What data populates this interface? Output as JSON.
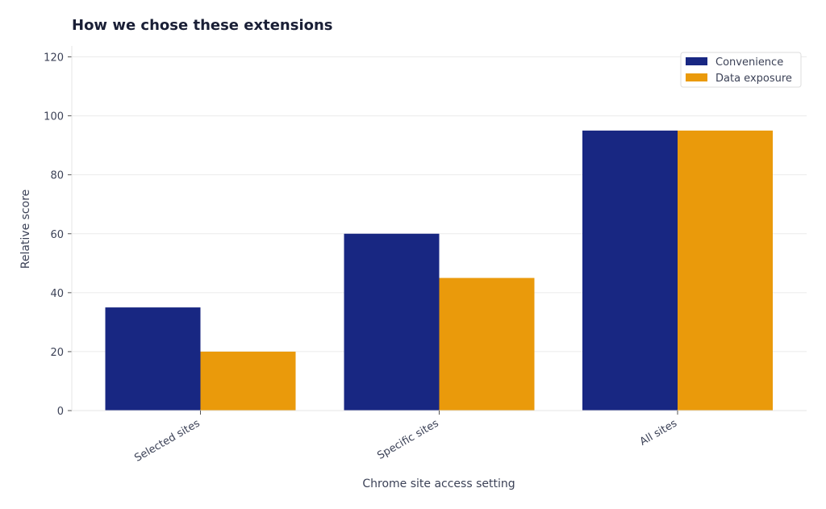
{
  "chart_data": {
    "type": "bar",
    "title": "How we chose these extensions",
    "xlabel": "Chrome site access setting",
    "ylabel": "Relative score",
    "categories": [
      "Selected sites",
      "Specific sites",
      "All sites"
    ],
    "series": [
      {
        "name": "Convenience",
        "values": [
          35,
          60,
          95
        ],
        "color": "#182782"
      },
      {
        "name": "Data exposure",
        "values": [
          20,
          45,
          95
        ],
        "color": "#ea9a0b"
      }
    ],
    "ylim": [
      0,
      120
    ],
    "yticks": [
      0,
      20,
      40,
      60,
      80,
      100,
      120
    ],
    "grid": true,
    "legend_position": "top-right"
  }
}
